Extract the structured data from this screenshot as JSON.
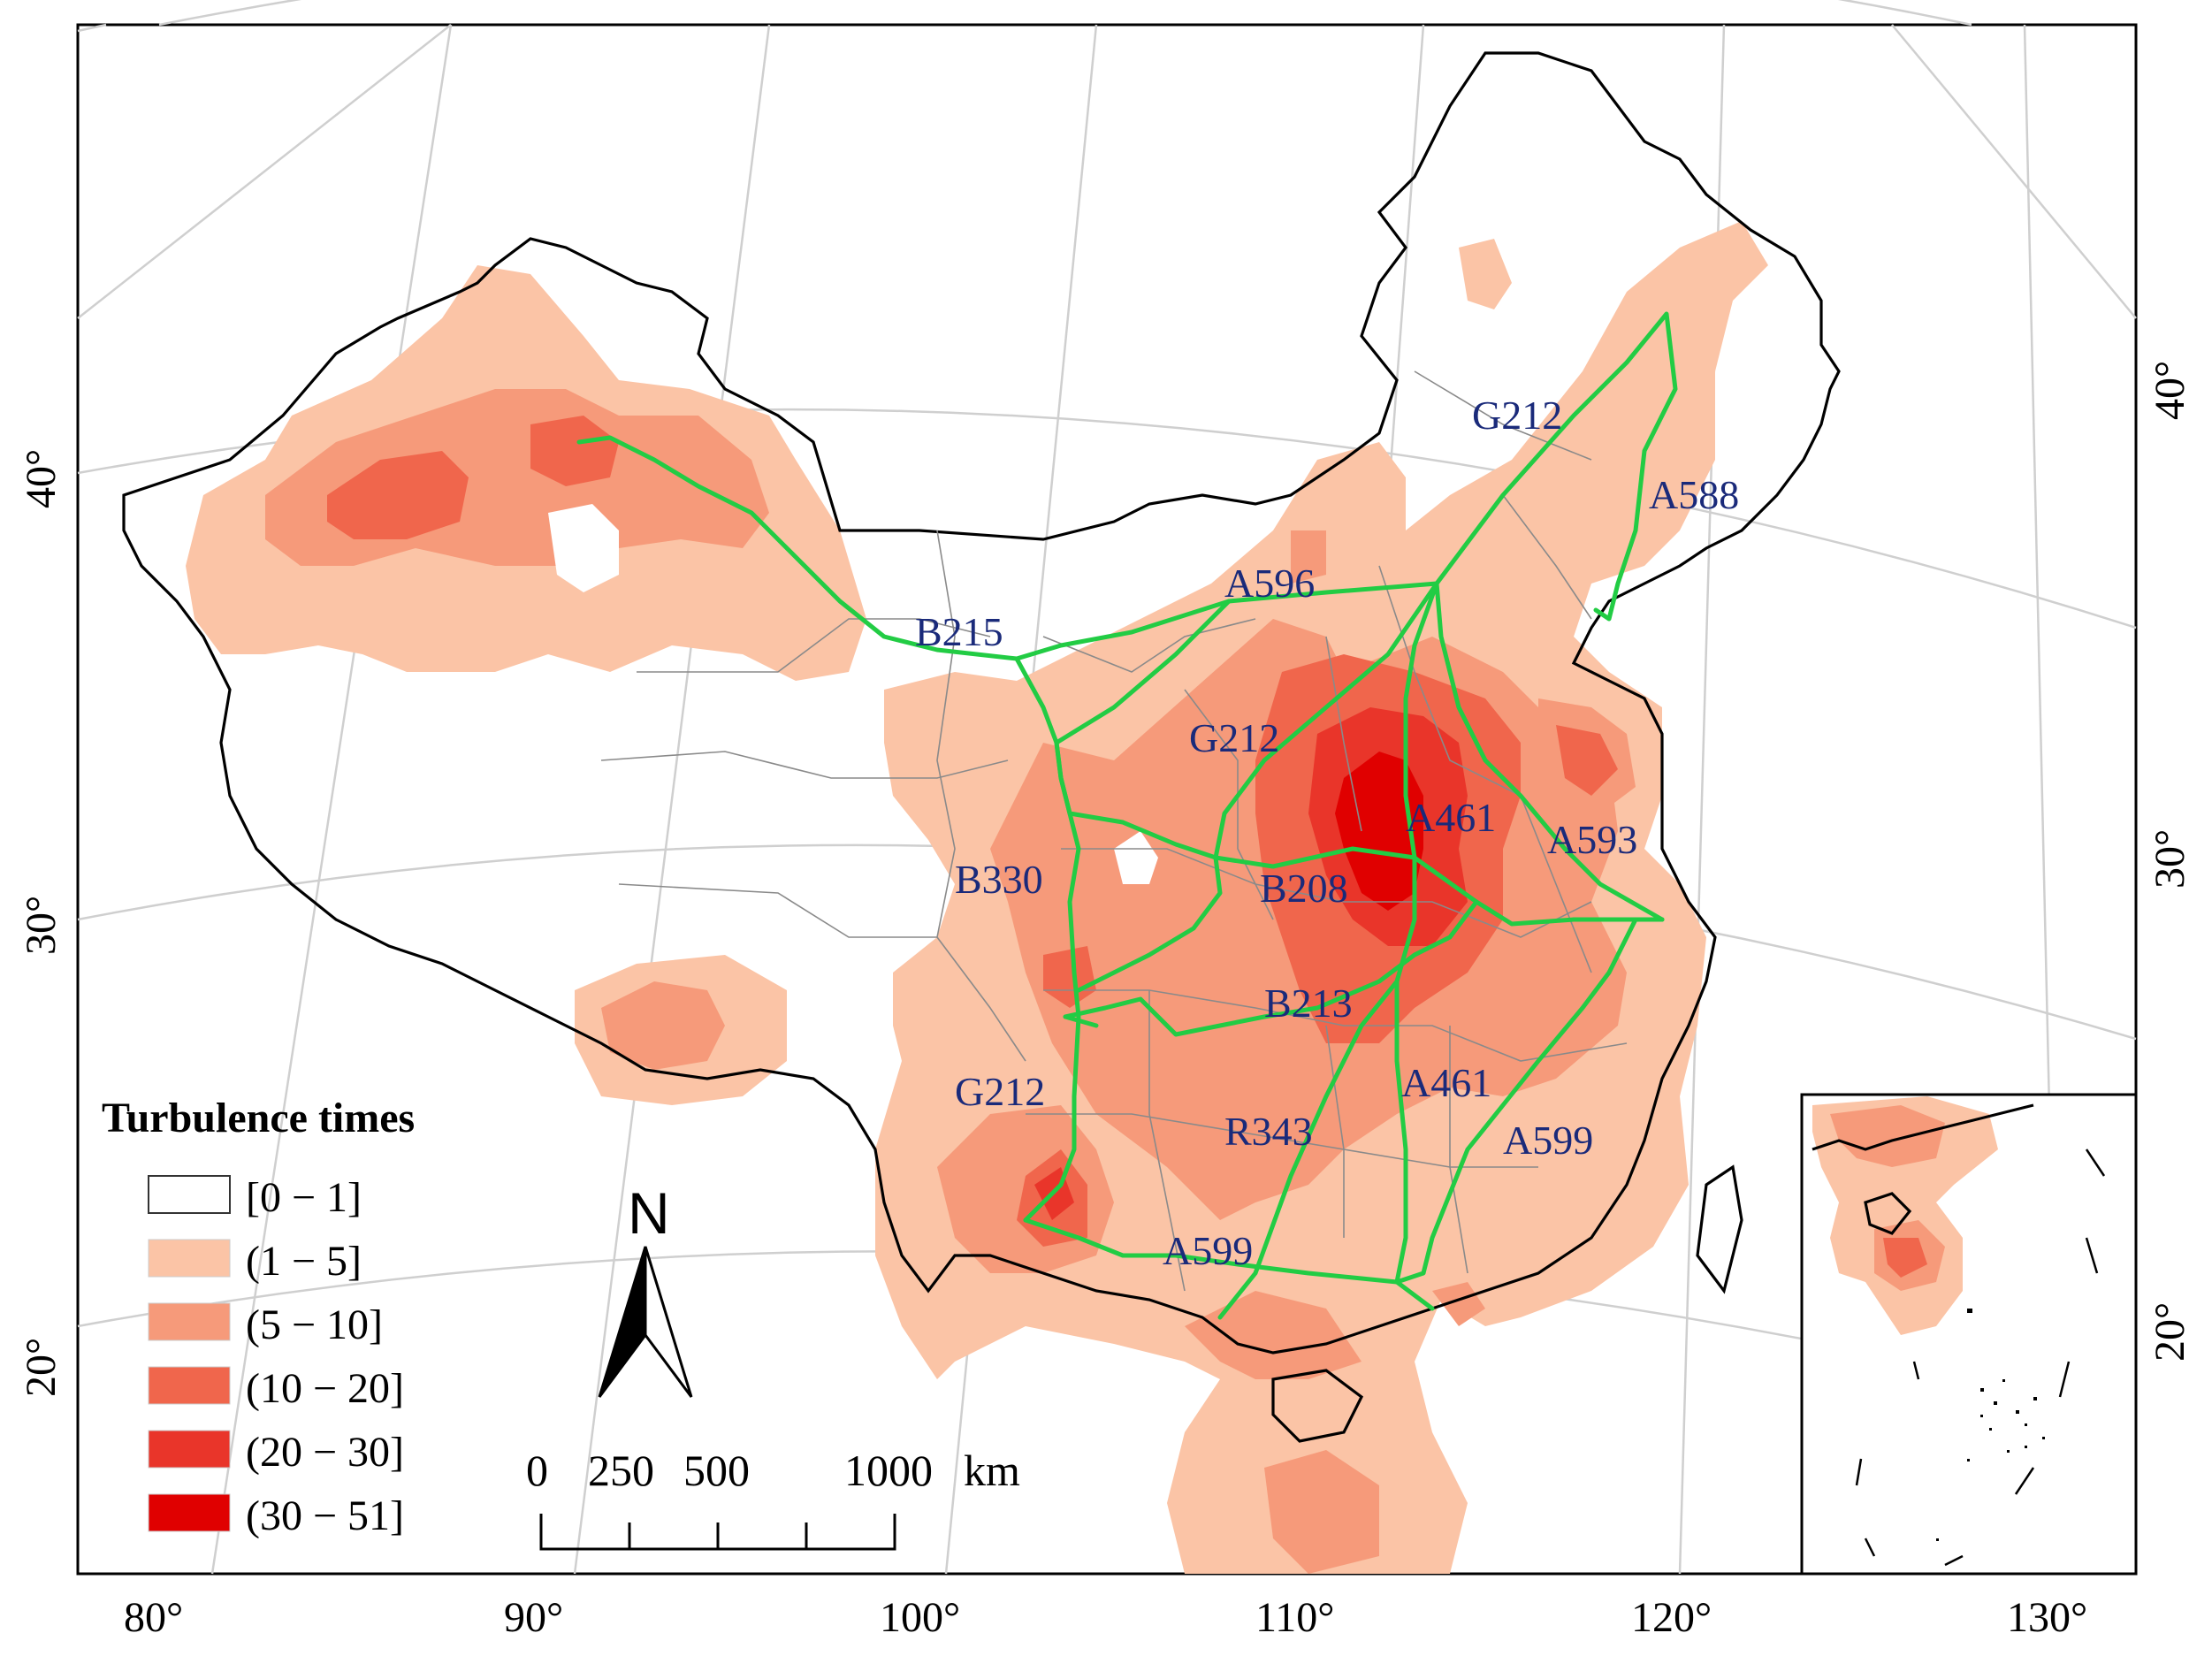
{
  "map": {
    "legend": {
      "title": "Turbulence times",
      "classes": [
        {
          "label": "[0 − 1]",
          "color": "#ffffff"
        },
        {
          "label": "(1 − 5]",
          "color": "#fbc4a6"
        },
        {
          "label": "(5 − 10]",
          "color": "#f69a7a"
        },
        {
          "label": "(10 − 20]",
          "color": "#f0664c"
        },
        {
          "label": "(20 − 30]",
          "color": "#e9352a"
        },
        {
          "label": "(30 − 51]",
          "color": "#e00000"
        }
      ]
    },
    "route_color": "#22cc44",
    "route_label_color": "#1a2a7a",
    "routes": [
      "G212",
      "A588",
      "A596",
      "B215",
      "G212",
      "A461",
      "A593",
      "B330",
      "B208",
      "B213",
      "G212",
      "A461",
      "R343",
      "A599",
      "A599"
    ],
    "north_arrow": {
      "label": "N"
    },
    "scale_bar": {
      "labels": [
        "0",
        "250",
        "500",
        "1000",
        "km"
      ]
    },
    "bottom_axis": [
      "80°",
      "90°",
      "100°",
      "110°",
      "120°",
      "130°"
    ],
    "left_axis": [
      "40°",
      "30°",
      "20°"
    ],
    "right_axis": [
      "40°",
      "30°",
      "20°"
    ]
  }
}
